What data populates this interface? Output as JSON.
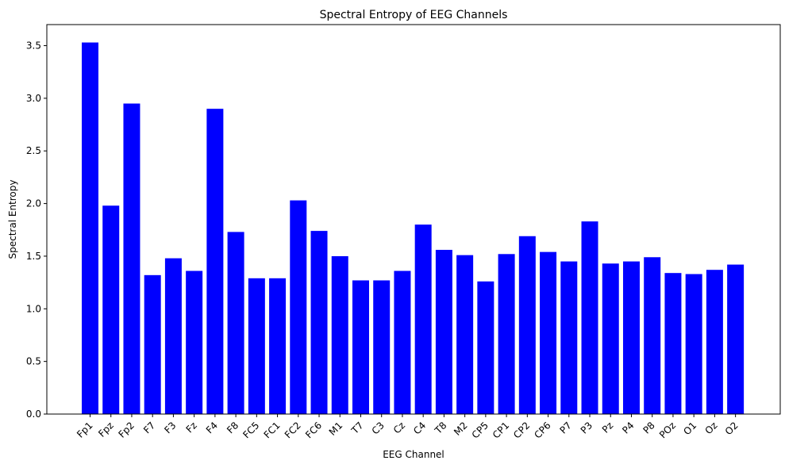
{
  "chart_data": {
    "type": "bar",
    "title": "Spectral Entropy of EEG Channels",
    "xlabel": "EEG Channel",
    "ylabel": "Spectral Entropy",
    "ylim": [
      0,
      3.7
    ],
    "yticks": [
      "0.0",
      "0.5",
      "1.0",
      "1.5",
      "2.0",
      "2.5",
      "3.0",
      "3.5"
    ],
    "categories": [
      "Fp1",
      "Fpz",
      "Fp2",
      "F7",
      "F3",
      "Fz",
      "F4",
      "F8",
      "FC5",
      "FC1",
      "FC2",
      "FC6",
      "M1",
      "T7",
      "C3",
      "Cz",
      "C4",
      "T8",
      "M2",
      "CP5",
      "CP1",
      "CP2",
      "CP6",
      "P7",
      "P3",
      "Pz",
      "P4",
      "P8",
      "POz",
      "O1",
      "Oz",
      "O2"
    ],
    "values": [
      3.53,
      1.98,
      2.95,
      1.32,
      1.48,
      1.36,
      2.9,
      1.73,
      1.29,
      1.29,
      2.03,
      1.74,
      1.5,
      1.27,
      1.27,
      1.36,
      1.8,
      1.56,
      1.51,
      1.26,
      1.52,
      1.69,
      1.54,
      1.45,
      1.83,
      1.43,
      1.45,
      1.49,
      1.34,
      1.33,
      1.37,
      1.42
    ],
    "bar_color": "#0000ff",
    "grid": false,
    "legend": "none"
  }
}
